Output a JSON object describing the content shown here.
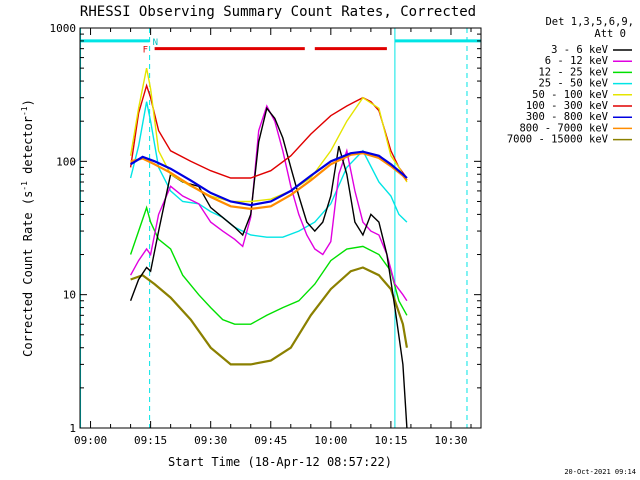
{
  "chart_data": {
    "type": "line",
    "title": "RHESSI Observing Summary Count Rates, Corrected",
    "xlabel": "Start Time (18-Apr-12 08:57:22)",
    "ylabel": "Corrected Count Rate (s",
    "ylabel_sup1": "-1",
    "ylabel_mid": " detector",
    "ylabel_sup2": "-1",
    "ylabel_end": ")",
    "yscale": "log",
    "ylim": [
      1,
      1000
    ],
    "xlim": [
      "08:57:22",
      "10:37:30"
    ],
    "x_ticks": [
      "09:00",
      "09:15",
      "09:30",
      "09:45",
      "10:00",
      "10:15",
      "10:30"
    ],
    "y_ticks": [
      "1",
      "10",
      "100",
      "1000"
    ],
    "legend_header": [
      "Det 1,3,5,6,9,",
      "Att 0"
    ],
    "legend_position": "right",
    "footer_date": "20-Oct-2021 09:14",
    "flag_labels": {
      "F": "F",
      "N": "N"
    },
    "vertical_markers": {
      "cyan_solid": [
        "08:57:30",
        "10:16:00"
      ],
      "cyan_dashed": [
        "09:14:45",
        "10:34:00"
      ]
    },
    "bars": [
      {
        "color": "#00e5e5",
        "y": 800,
        "segments": [
          [
            "08:57:30",
            "09:14:45"
          ],
          [
            "10:16:00",
            "10:37:30"
          ]
        ]
      },
      {
        "color": "#e00000",
        "y": 700,
        "segments": [
          [
            "09:16:00",
            "09:53:30"
          ],
          [
            "09:56:00",
            "10:14:00"
          ]
        ]
      }
    ],
    "series": [
      {
        "name": "3 - 6 keV",
        "color": "#000000",
        "times": [
          "09:10",
          "09:12",
          "09:14",
          "09:15",
          "09:17",
          "09:20",
          "09:23",
          "09:27",
          "09:30",
          "09:33",
          "09:36",
          "09:38",
          "09:40",
          "09:42",
          "09:44",
          "09:46",
          "09:48",
          "09:50",
          "09:52",
          "09:54",
          "09:56",
          "09:58",
          "10:00",
          "10:02",
          "10:04",
          "10:06",
          "10:08",
          "10:10",
          "10:12",
          "10:14",
          "10:16",
          "10:18",
          "10:19"
        ],
        "values": [
          9,
          13,
          16,
          15,
          30,
          80,
          70,
          65,
          45,
          38,
          32,
          28,
          40,
          140,
          250,
          210,
          150,
          90,
          55,
          35,
          30,
          35,
          55,
          130,
          80,
          35,
          28,
          40,
          35,
          20,
          8,
          3,
          1
        ]
      },
      {
        "name": "6 - 12 keV",
        "color": "#e000e0",
        "times": [
          "09:10",
          "09:12",
          "09:14",
          "09:15",
          "09:17",
          "09:20",
          "09:23",
          "09:27",
          "09:30",
          "09:33",
          "09:36",
          "09:38",
          "09:40",
          "09:42",
          "09:44",
          "09:46",
          "09:48",
          "09:50",
          "09:52",
          "09:54",
          "09:56",
          "09:58",
          "10:00",
          "10:02",
          "10:04",
          "10:06",
          "10:08",
          "10:10",
          "10:12",
          "10:14",
          "10:16",
          "10:18",
          "10:19"
        ],
        "values": [
          14,
          18,
          22,
          20,
          40,
          65,
          55,
          48,
          35,
          30,
          26,
          23,
          38,
          170,
          260,
          200,
          120,
          65,
          40,
          28,
          22,
          20,
          25,
          80,
          120,
          60,
          35,
          30,
          28,
          20,
          12,
          10,
          9
        ]
      },
      {
        "name": "12 - 25 keV",
        "color": "#00e000",
        "times": [
          "09:10",
          "09:12",
          "09:14",
          "09:15",
          "09:17",
          "09:20",
          "09:23",
          "09:27",
          "09:30",
          "09:33",
          "09:36",
          "09:40",
          "09:44",
          "09:48",
          "09:52",
          "09:56",
          "10:00",
          "10:04",
          "10:08",
          "10:12",
          "10:15",
          "10:17",
          "10:19"
        ],
        "values": [
          20,
          30,
          45,
          35,
          26,
          22,
          14,
          10,
          8,
          6.5,
          6,
          6,
          7,
          8,
          9,
          12,
          18,
          22,
          23,
          20,
          15,
          9,
          7
        ]
      },
      {
        "name": "25 - 50 keV",
        "color": "#00e5e5",
        "times": [
          "09:10",
          "09:12",
          "09:14",
          "09:15",
          "09:17",
          "09:20",
          "09:23",
          "09:27",
          "09:30",
          "09:33",
          "09:36",
          "09:40",
          "09:44",
          "09:48",
          "09:52",
          "09:56",
          "10:00",
          "10:04",
          "10:08",
          "10:12",
          "10:15",
          "10:17",
          "10:19"
        ],
        "values": [
          75,
          130,
          280,
          200,
          90,
          60,
          50,
          48,
          42,
          38,
          32,
          28,
          27,
          27,
          30,
          35,
          48,
          90,
          120,
          70,
          55,
          40,
          35
        ]
      },
      {
        "name": "50 - 100 keV",
        "color": "#e5e500",
        "times": [
          "09:10",
          "09:12",
          "09:14",
          "09:15",
          "09:17",
          "09:20",
          "09:25",
          "09:30",
          "09:35",
          "09:40",
          "09:45",
          "09:50",
          "09:55",
          "10:00",
          "10:04",
          "10:08",
          "10:12",
          "10:15",
          "10:17",
          "10:19"
        ],
        "values": [
          110,
          250,
          500,
          350,
          120,
          80,
          65,
          55,
          50,
          50,
          52,
          60,
          75,
          120,
          200,
          300,
          250,
          110,
          90,
          70
        ]
      },
      {
        "name": "100 - 300 keV",
        "color": "#e00000",
        "times": [
          "09:10",
          "09:12",
          "09:14",
          "09:15",
          "09:17",
          "09:20",
          "09:25",
          "09:30",
          "09:35",
          "09:40",
          "09:45",
          "09:50",
          "09:55",
          "10:00",
          "10:04",
          "10:06",
          "10:08",
          "10:10",
          "10:12",
          "10:15",
          "10:17",
          "10:19"
        ],
        "values": [
          90,
          230,
          370,
          300,
          170,
          120,
          100,
          85,
          75,
          75,
          85,
          110,
          160,
          220,
          260,
          280,
          300,
          280,
          240,
          120,
          90,
          75
        ]
      },
      {
        "name": "300 - 800 keV",
        "color": "#0000e0",
        "times": [
          "09:10",
          "09:13",
          "09:16",
          "09:20",
          "09:25",
          "09:30",
          "09:35",
          "09:40",
          "09:45",
          "09:50",
          "09:55",
          "10:00",
          "10:05",
          "10:08",
          "10:12",
          "10:15",
          "10:18",
          "10:19"
        ],
        "values": [
          95,
          108,
          100,
          88,
          72,
          58,
          50,
          47,
          50,
          60,
          78,
          100,
          115,
          118,
          110,
          95,
          80,
          75
        ]
      },
      {
        "name": "800 - 7000 keV",
        "color": "#ff8c00",
        "times": [
          "09:10",
          "09:13",
          "09:16",
          "09:20",
          "09:25",
          "09:30",
          "09:35",
          "09:40",
          "09:45",
          "09:50",
          "09:55",
          "10:00",
          "10:05",
          "10:08",
          "10:12",
          "10:15",
          "10:18",
          "10:19"
        ],
        "values": [
          100,
          105,
          95,
          82,
          66,
          54,
          46,
          44,
          46,
          56,
          72,
          95,
          112,
          115,
          106,
          92,
          78,
          72
        ]
      },
      {
        "name": "7000 - 15000 keV",
        "color": "#8b8000",
        "times": [
          "09:10",
          "09:13",
          "09:16",
          "09:20",
          "09:25",
          "09:30",
          "09:35",
          "09:40",
          "09:45",
          "09:50",
          "09:55",
          "10:00",
          "10:05",
          "10:08",
          "10:12",
          "10:15",
          "10:18",
          "10:19"
        ],
        "values": [
          13,
          14,
          12,
          9.5,
          6.5,
          4,
          3,
          3,
          3.2,
          4,
          7,
          11,
          15,
          16,
          14,
          11,
          6,
          4
        ]
      }
    ]
  }
}
